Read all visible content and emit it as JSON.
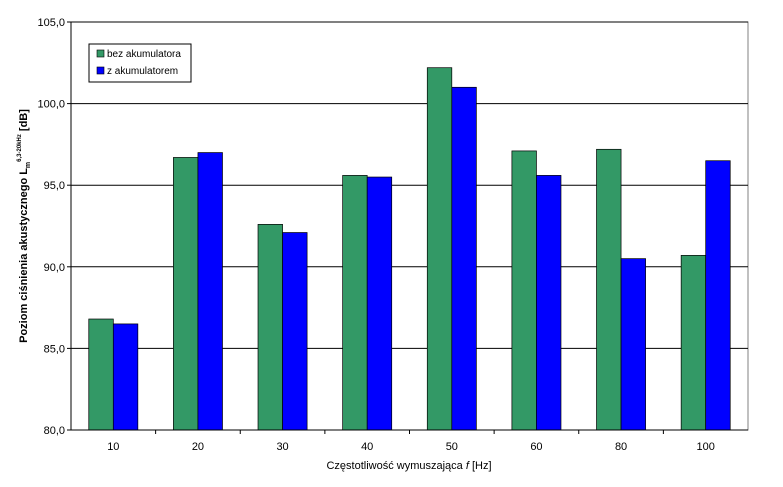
{
  "chart_data": {
    "type": "bar",
    "title": "",
    "categories": [
      "10",
      "20",
      "30",
      "40",
      "50",
      "60",
      "80",
      "100"
    ],
    "series": [
      {
        "name": "bez akumulatora",
        "color": "#339966",
        "values": [
          86.8,
          96.7,
          92.6,
          95.6,
          102.2,
          97.1,
          97.2,
          90.7
        ]
      },
      {
        "name": "z akumulatorem",
        "color": "#0000ff",
        "values": [
          86.5,
          97.0,
          92.1,
          95.5,
          101.0,
          95.6,
          90.5,
          96.5
        ]
      }
    ],
    "xlabel": {
      "prefix": "Częstotliwość wymuszająca ",
      "italic": "f",
      "suffix": " [Hz]"
    },
    "ylabel": {
      "main": "Poziom ciśnienia akustycznego L",
      "sub": "m",
      "sup": "6,3-20kHz",
      "suffix": " [dB]"
    },
    "ylim": [
      80,
      105
    ],
    "yticks": [
      "80,0",
      "85,0",
      "90,0",
      "95,0",
      "100,0",
      "105,0"
    ],
    "grid": "horizontal",
    "legend_position": "top-left"
  }
}
